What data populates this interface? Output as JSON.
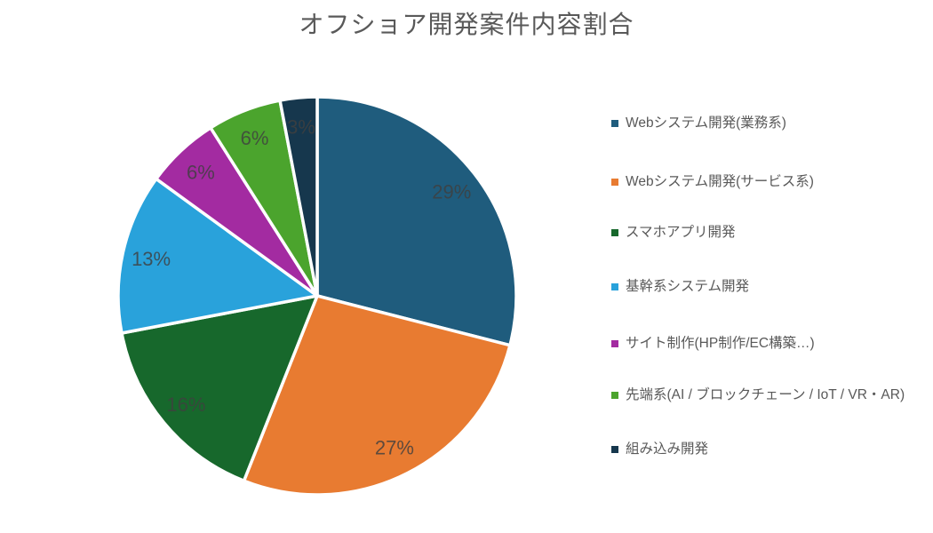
{
  "title": "オフショア開発案件内容割合",
  "colors": {
    "title_text": "#595959",
    "legend_text": "#595959",
    "data_label_text": "#404040",
    "background": "#ffffff",
    "slice_border": "#ffffff"
  },
  "chart_data": {
    "type": "pie",
    "title": "オフショア開発案件内容割合",
    "legend_position": "right",
    "start_angle": "top",
    "direction": "clockwise",
    "values_unit": "%",
    "data_labels": [
      "29%",
      "27%",
      "16%",
      "13%",
      "6%",
      "6%",
      "3%"
    ],
    "slices": [
      {
        "label": "Webシステム開発(業務系)",
        "value": 29,
        "color": "#1F5C7D"
      },
      {
        "label": "Webシステム開発(サービス系)",
        "value": 27,
        "color": "#E87B31"
      },
      {
        "label": "スマホアプリ開発",
        "value": 16,
        "color": "#17682C"
      },
      {
        "label": "基幹系システム開発",
        "value": 13,
        "color": "#29A2DB"
      },
      {
        "label": "サイト制作(HP制作/EC構築…)",
        "value": 6,
        "color": "#A32BA1"
      },
      {
        "label": "先端系(AI / ブロックチェーン / IoT / VR・AR)",
        "value": 6,
        "color": "#4BA42D"
      },
      {
        "label": "組み込み開発",
        "value": 3,
        "color": "#16374D"
      }
    ]
  }
}
